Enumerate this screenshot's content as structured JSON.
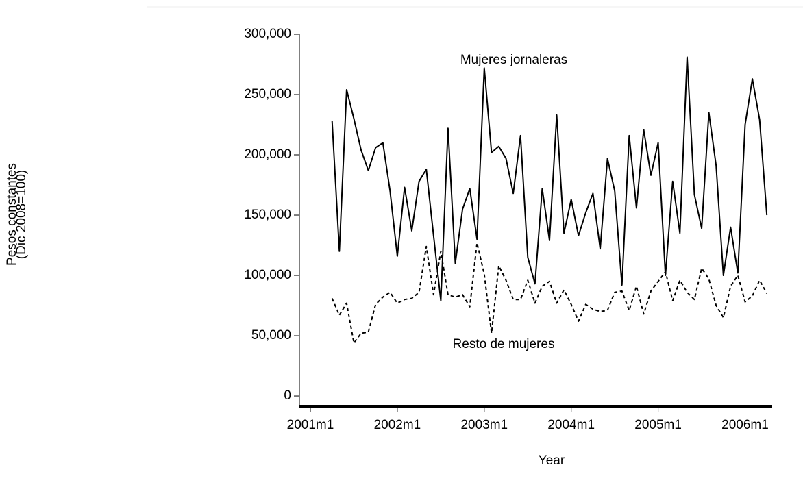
{
  "chart_data": {
    "type": "line",
    "x_label": "Year",
    "y_label": [
      "Pesos constantes",
      "(Dic 2008=100)"
    ],
    "annotations": [
      "Mujeres jornaleras",
      "Resto de mujeres"
    ],
    "x": [
      "2001m4",
      "2001m5",
      "2001m6",
      "2001m7",
      "2001m8",
      "2001m9",
      "2001m10",
      "2001m11",
      "2001m12",
      "2002m1",
      "2002m2",
      "2002m3",
      "2002m4",
      "2002m5",
      "2002m6",
      "2002m7",
      "2002m8",
      "2002m9",
      "2002m10",
      "2002m11",
      "2002m12",
      "2003m1",
      "2003m2",
      "2003m3",
      "2003m4",
      "2003m5",
      "2003m6",
      "2003m7",
      "2003m8",
      "2003m9",
      "2003m10",
      "2003m11",
      "2003m12",
      "2004m1",
      "2004m2",
      "2004m3",
      "2004m4",
      "2004m5",
      "2004m6",
      "2004m7",
      "2004m8",
      "2004m9",
      "2004m10",
      "2004m11",
      "2004m12",
      "2005m1",
      "2005m2",
      "2005m3",
      "2005m4",
      "2005m5",
      "2005m6",
      "2005m7",
      "2005m8",
      "2005m9",
      "2005m10",
      "2005m11",
      "2005m12",
      "2006m1",
      "2006m2",
      "2006m3",
      "2006m4"
    ],
    "series": [
      {
        "name": "Mujeres jornaleras",
        "color": "#000000",
        "dash": false,
        "values": [
          228000,
          120000,
          254000,
          230000,
          204000,
          187000,
          206000,
          210000,
          170000,
          116000,
          173000,
          137000,
          178000,
          188000,
          133000,
          79000,
          222000,
          110000,
          155000,
          172000,
          130000,
          272000,
          202000,
          207000,
          197000,
          168000,
          216000,
          115000,
          93000,
          172000,
          129000,
          233000,
          135000,
          163000,
          133000,
          152000,
          168000,
          122000,
          197000,
          170000,
          92000,
          216000,
          156000,
          221000,
          183000,
          210000,
          100000,
          178000,
          135000,
          281000,
          167000,
          139000,
          235000,
          191000,
          100000,
          140000,
          102000,
          225000,
          263000,
          229000,
          150000
        ]
      },
      {
        "name": "Resto de mujeres",
        "color": "#000000",
        "dash": true,
        "values": [
          81000,
          67000,
          77000,
          44000,
          52000,
          53000,
          76000,
          82000,
          86000,
          77000,
          80000,
          81000,
          86000,
          124000,
          84000,
          120000,
          84000,
          82000,
          84000,
          74000,
          127000,
          101000,
          52000,
          108000,
          96000,
          80000,
          80000,
          96000,
          77000,
          91000,
          95000,
          77000,
          88000,
          76000,
          62000,
          76000,
          72000,
          70000,
          71000,
          86000,
          87000,
          71000,
          91000,
          68000,
          87000,
          95000,
          103000,
          79000,
          96000,
          86000,
          80000,
          106000,
          97000,
          75000,
          65000,
          91000,
          100000,
          78000,
          83000,
          96000,
          85000
        ]
      }
    ],
    "ylim": [
      -8500,
      300000
    ],
    "yticks": [
      {
        "value": 0,
        "label": "0"
      },
      {
        "value": 50000,
        "label": "50,000"
      },
      {
        "value": 100000,
        "label": "100,000"
      },
      {
        "value": 150000,
        "label": "150,000"
      },
      {
        "value": 200000,
        "label": "200,000"
      },
      {
        "value": 250000,
        "label": "250,000"
      },
      {
        "value": 300000,
        "label": "300,000"
      }
    ],
    "xticks": [
      "2001m1",
      "2002m1",
      "2003m1",
      "2004m1",
      "2005m1",
      "2006m1"
    ]
  }
}
